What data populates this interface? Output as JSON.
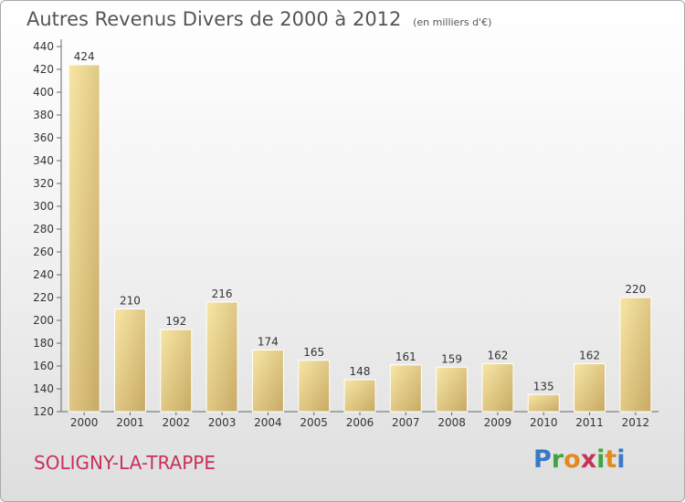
{
  "header": {
    "title": "Autres Revenus Divers de 2000 à 2012",
    "unit": "(en milliers d'€)"
  },
  "footer": {
    "commune": "SOLIGNY-LA-TRAPPE",
    "logo_text": "Proxiti"
  },
  "colors": {
    "bar_light": "#f6e09a",
    "bar_dark": "#c9ad67",
    "commune": "#c8305a"
  },
  "chart_data": {
    "type": "bar",
    "title": "Autres Revenus Divers de 2000 à 2012",
    "subtitle": "(en milliers d'€)",
    "xlabel": "",
    "ylabel": "",
    "categories": [
      "2000",
      "2001",
      "2002",
      "2003",
      "2004",
      "2005",
      "2006",
      "2007",
      "2008",
      "2009",
      "2010",
      "2011",
      "2012"
    ],
    "values": [
      424,
      210,
      192,
      216,
      174,
      165,
      148,
      161,
      159,
      162,
      135,
      162,
      220
    ],
    "ylim": [
      120,
      440
    ],
    "yticks": [
      120,
      140,
      160,
      180,
      200,
      220,
      240,
      260,
      280,
      300,
      320,
      340,
      360,
      380,
      400,
      420,
      440
    ],
    "grid": false,
    "legend": "none"
  }
}
